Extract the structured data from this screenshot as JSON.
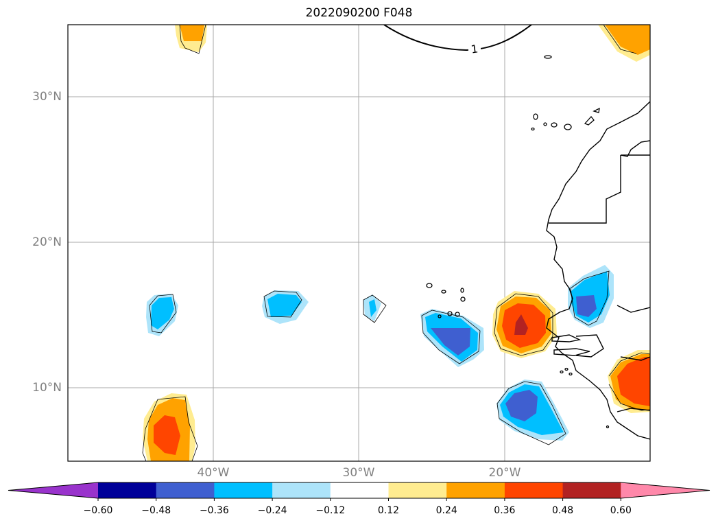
{
  "title": "2022090200 F048",
  "map": {
    "lat_ticks": [
      {
        "value": 30,
        "label": "30°N"
      },
      {
        "value": 20,
        "label": "20°N"
      },
      {
        "value": 10,
        "label": "10°N"
      }
    ],
    "lon_ticks": [
      {
        "value": -40,
        "label": "40°W"
      },
      {
        "value": -30,
        "label": "30°W"
      },
      {
        "value": -20,
        "label": "20°W"
      }
    ],
    "contour_label": "1",
    "gridlines": true
  },
  "colorbar": {
    "colors": [
      "#9933cc",
      "#000099",
      "#3f5fd0",
      "#00bfff",
      "#ade4fa",
      "#ffffff",
      "#ffec90",
      "#ffa200",
      "#ff4500",
      "#b22222",
      "#ff88aa"
    ],
    "tick_labels": [
      "−0.60",
      "−0.48",
      "−0.36",
      "−0.24",
      "−0.12",
      "0.12",
      "0.24",
      "0.36",
      "0.48",
      "0.60"
    ],
    "extend": "both"
  }
}
